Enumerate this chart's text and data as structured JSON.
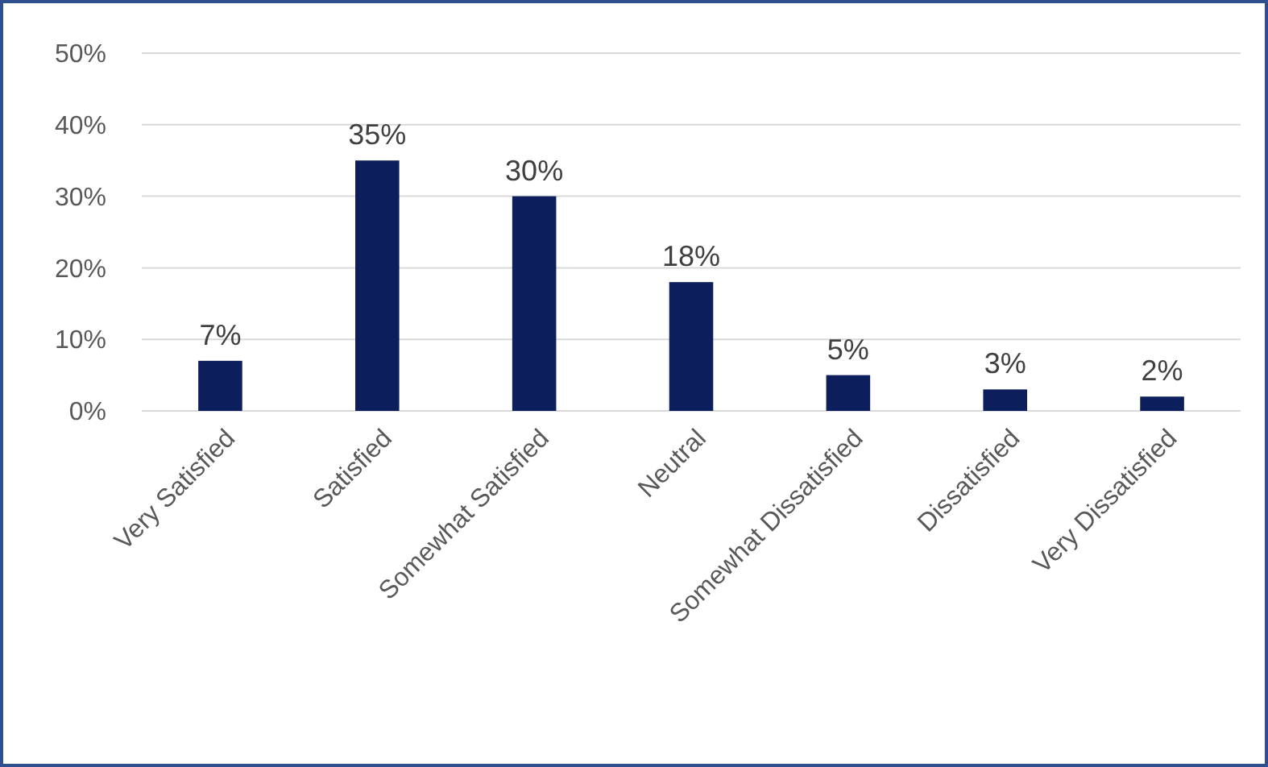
{
  "chart_data": {
    "type": "bar",
    "categories": [
      "Very Satisfied",
      "Satisfied",
      "Somewhat Satisfied",
      "Neutral",
      "Somewhat Dissatisfied",
      "Dissatisfied",
      "Very Dissatisfied"
    ],
    "values": [
      7,
      35,
      30,
      18,
      5,
      3,
      2
    ],
    "value_labels": [
      "7%",
      "35%",
      "30%",
      "18%",
      "5%",
      "3%",
      "2%"
    ],
    "color": "#0c1f5c",
    "ylim": [
      0,
      50
    ],
    "yticks": [
      {
        "value": 0,
        "label": "0%"
      },
      {
        "value": 10,
        "label": "10%"
      },
      {
        "value": 20,
        "label": "20%"
      },
      {
        "value": 30,
        "label": "30%"
      },
      {
        "value": 40,
        "label": "40%"
      },
      {
        "value": 50,
        "label": "50%"
      }
    ],
    "grid": true
  }
}
